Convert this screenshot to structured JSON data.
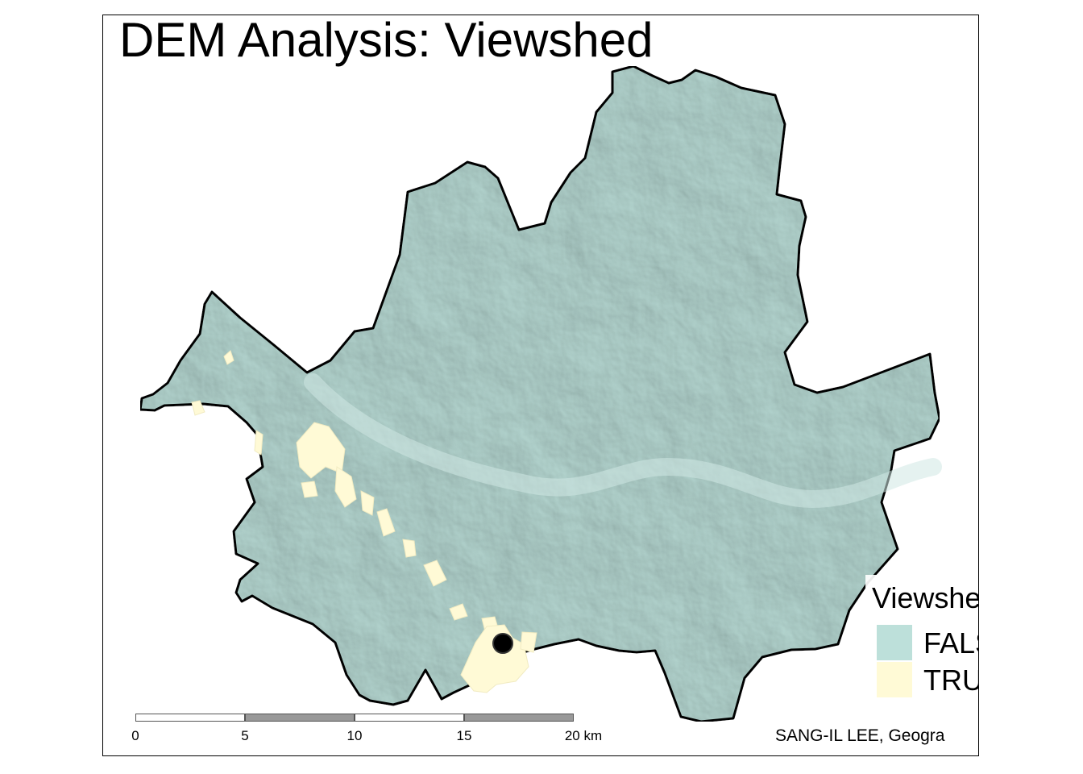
{
  "map": {
    "title": "DEM Analysis: Viewshed",
    "legend": {
      "title": "Viewshed",
      "items": [
        {
          "label": "FALSE",
          "color": "#bde0da"
        },
        {
          "label": "TRUE",
          "color": "#fffad6"
        }
      ]
    },
    "scalebar": {
      "ticks": [
        "0",
        "5",
        "10",
        "15",
        "20 km"
      ],
      "segment_colors": [
        "#ffffff",
        "#999999",
        "#ffffff",
        "#999999"
      ]
    },
    "credits": "SANG-IL LEE, Geogra",
    "colors": {
      "viewshed_false": "#bde0da",
      "viewshed_true": "#fffad6",
      "boundary": "#000000",
      "observer_point": "#000000"
    }
  }
}
